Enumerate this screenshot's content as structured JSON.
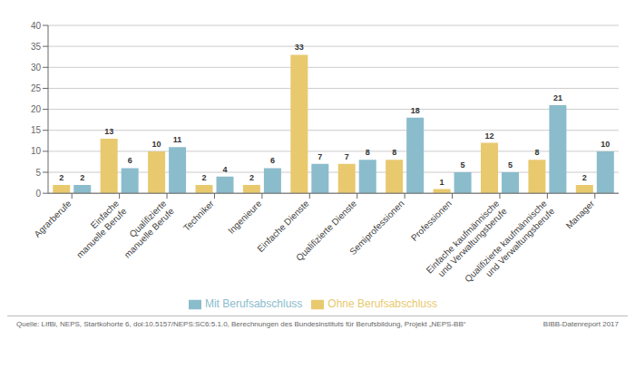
{
  "chart_data": {
    "type": "bar",
    "categories": [
      "Agrarberufe",
      "Einfache\nmanuelle Berufe",
      "Qualifizierte\nmanuelle Berufe",
      "Techniker",
      "Ingenieure",
      "Einfache Dienste",
      "Qualifizierte Dienste",
      "Semiprofessionen",
      "Professionen",
      "Einfache kaufmännische\nund Verwaltungsberufe",
      "Qualifizierte kaufmännische\nund Verwaltungsberufe",
      "Manager"
    ],
    "series": [
      {
        "name": "Ohne Berufsabschluss",
        "color": "#e8c96e",
        "values": [
          2,
          13,
          10,
          2,
          2,
          33,
          7,
          8,
          1,
          12,
          8,
          2
        ]
      },
      {
        "name": "Mit Berufsabschluss",
        "color": "#8bbccc",
        "values": [
          2,
          6,
          11,
          4,
          6,
          7,
          8,
          18,
          5,
          5,
          21,
          10
        ]
      }
    ],
    "ylim": [
      0,
      40
    ],
    "yticks": [
      0,
      5,
      10,
      15,
      20,
      25,
      30,
      35,
      40
    ],
    "grid": true,
    "legend": "bottom",
    "data_labels": true,
    "annotations": [
      "Quelle: LIfBi, NEPS, Startkohorte 6, doi:10.5157/NEPS:SC6:5.1.0, Berechnungen des Bundesinstituts für Berufsbildung, Projekt „NEPS-BB“",
      "BIBB-Datenreport 2017"
    ]
  }
}
